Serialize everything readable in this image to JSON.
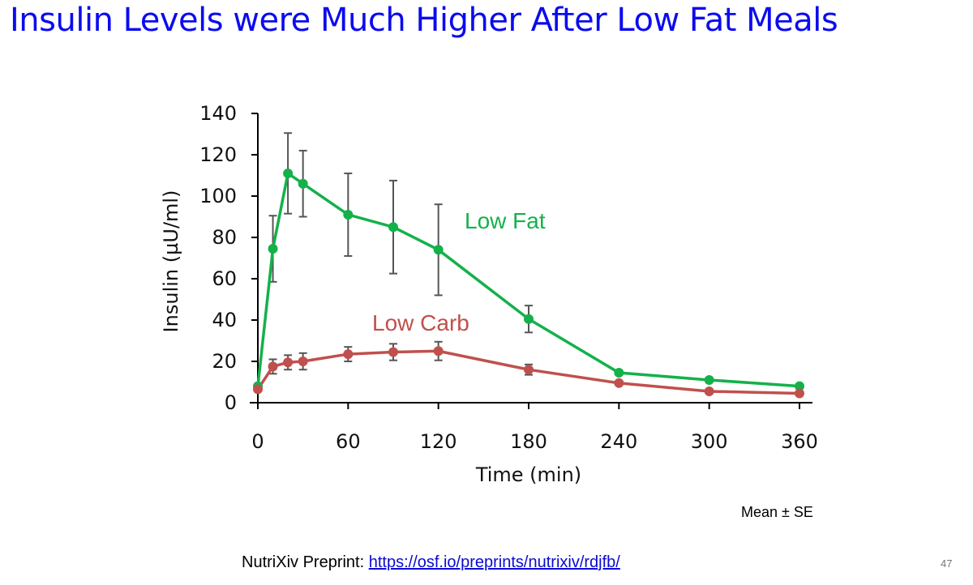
{
  "slide": {
    "title": "Insulin Levels were Much Higher After Low Fat Meals",
    "footnote": "Mean ± SE",
    "source_prefix": "NutriXiv Preprint: ",
    "source_link": "https://osf.io/preprints/nutrixiv/rdjfb/",
    "page_number": "47"
  },
  "chart_data": {
    "type": "line",
    "title": "",
    "xlabel": "Time (min)",
    "ylabel": "Insulin (µU/ml)",
    "xlim": [
      0,
      360
    ],
    "ylim": [
      0,
      140
    ],
    "xticks": [
      0,
      60,
      120,
      180,
      240,
      300,
      360
    ],
    "yticks": [
      0,
      20,
      40,
      60,
      80,
      100,
      120,
      140
    ],
    "grid": false,
    "legend": "inline labels",
    "series": [
      {
        "name": "Low Fat",
        "color": "#14b14b",
        "x": [
          0,
          10,
          20,
          30,
          60,
          90,
          120,
          180,
          240,
          300,
          360
        ],
        "y": [
          8,
          74.5,
          111,
          106,
          91,
          85,
          74,
          40.5,
          14.5,
          11,
          8
        ],
        "err": [
          0,
          16,
          19.5,
          16,
          20,
          22.5,
          22,
          6.5,
          0,
          0,
          0
        ]
      },
      {
        "name": "Low Carb",
        "color": "#c0504d",
        "x": [
          0,
          10,
          20,
          30,
          60,
          90,
          120,
          180,
          240,
          300,
          360
        ],
        "y": [
          6.5,
          17.5,
          19.5,
          20,
          23.5,
          24.5,
          25,
          16,
          9.5,
          5.5,
          4.5
        ],
        "err": [
          0,
          3.5,
          3.5,
          4,
          3.5,
          4,
          4.5,
          2.5,
          0,
          0,
          0
        ]
      }
    ]
  }
}
